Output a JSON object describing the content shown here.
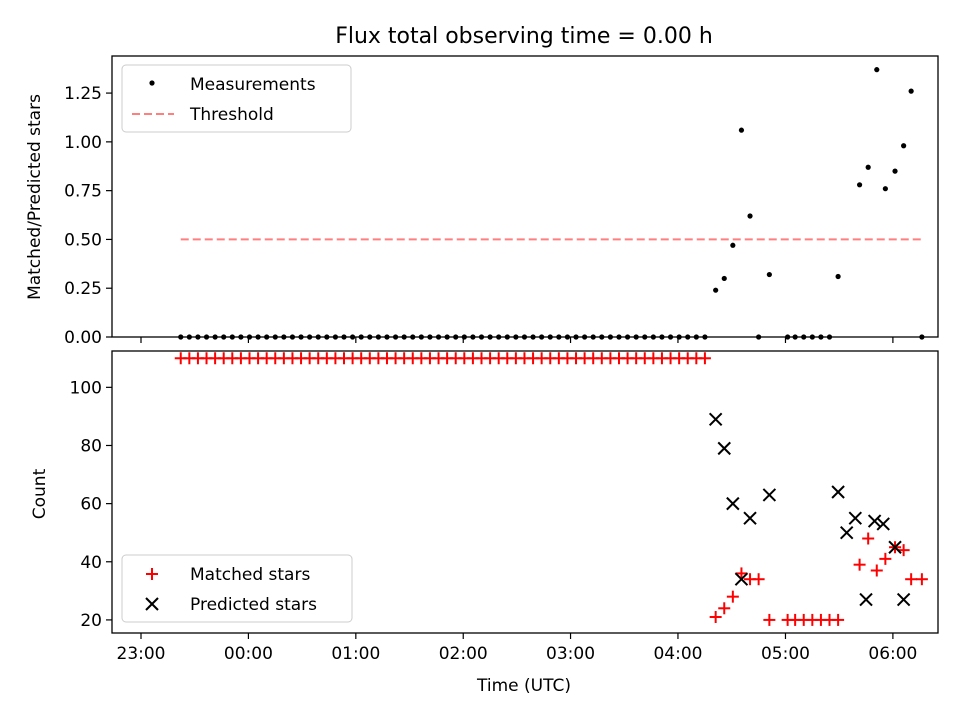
{
  "chart_data": {
    "title": "Flux total observing time = 0.00 h",
    "xlabel": "Time (UTC)",
    "x_unit": "hours since 23:00 UTC",
    "xlim": [
      -0.27,
      7.42
    ],
    "xticks": [
      {
        "value": 0,
        "label": "23:00"
      },
      {
        "value": 1,
        "label": "00:00"
      },
      {
        "value": 2,
        "label": "01:00"
      },
      {
        "value": 3,
        "label": "02:00"
      },
      {
        "value": 3.999,
        "label": "03:00"
      },
      {
        "value": 4.999,
        "label": "04:00"
      },
      {
        "value": 6,
        "label": "05:00"
      },
      {
        "value": 7,
        "label": "06:00"
      }
    ],
    "panels": [
      {
        "type": "scatter",
        "ylabel": "Matched/Predicted stars",
        "ylim": [
          0,
          1.44
        ],
        "yticks": [
          {
            "value": 0,
            "label": "0.00"
          },
          {
            "value": 0.25,
            "label": "0.25"
          },
          {
            "value": 0.5,
            "label": "0.50"
          },
          {
            "value": 0.75,
            "label": "0.75"
          },
          {
            "value": 1.0,
            "label": "1.00"
          },
          {
            "value": 1.25,
            "label": "1.25"
          }
        ],
        "legend": {
          "position": "top-left",
          "entries": [
            "Measurements",
            "Threshold"
          ]
        },
        "series": [
          {
            "name": "Measurements",
            "kind": "dots",
            "color": "#000000",
            "x": [
              0.37,
              0.45,
              0.53,
              0.61,
              0.69,
              0.77,
              0.85,
              0.93,
              1.01,
              1.09,
              1.17,
              1.25,
              1.33,
              1.41,
              1.49,
              1.57,
              1.65,
              1.73,
              1.81,
              1.89,
              1.97,
              2.05,
              2.13,
              2.21,
              2.29,
              2.37,
              2.45,
              2.53,
              2.61,
              2.69,
              2.77,
              2.85,
              2.93,
              3.01,
              3.09,
              3.17,
              3.25,
              3.33,
              3.41,
              3.49,
              3.57,
              3.65,
              3.73,
              3.81,
              3.89,
              3.97,
              4.05,
              4.13,
              4.21,
              4.29,
              4.37,
              4.45,
              4.53,
              4.61,
              4.69,
              4.77,
              4.85,
              4.93,
              5.01,
              5.09,
              5.17,
              5.25,
              5.35,
              5.43,
              5.51,
              5.59,
              5.67,
              5.75,
              5.85,
              6.02,
              6.09,
              6.17,
              6.25,
              6.33,
              6.41,
              6.49,
              6.69,
              6.77,
              6.85,
              6.93,
              7.02,
              7.1,
              7.17,
              7.27
            ],
            "y": [
              0,
              0,
              0,
              0,
              0,
              0,
              0,
              0,
              0,
              0,
              0,
              0,
              0,
              0,
              0,
              0,
              0,
              0,
              0,
              0,
              0,
              0,
              0,
              0,
              0,
              0,
              0,
              0,
              0,
              0,
              0,
              0,
              0,
              0,
              0,
              0,
              0,
              0,
              0,
              0,
              0,
              0,
              0,
              0,
              0,
              0,
              0,
              0,
              0,
              0,
              0,
              0,
              0,
              0,
              0,
              0,
              0,
              0,
              0,
              0,
              0,
              0,
              0.24,
              0.3,
              0.47,
              1.06,
              0.62,
              0,
              0.32,
              0,
              0,
              0,
              0,
              0,
              0,
              0.31,
              0.78,
              0.87,
              1.37,
              0.76,
              0.85,
              0.98,
              1.26,
              0
            ]
          },
          {
            "name": "Threshold",
            "kind": "dashed-line",
            "color": "#ff7f7f",
            "x": [
              0.37,
              7.27
            ],
            "y": [
              0.5,
              0.5
            ]
          }
        ]
      },
      {
        "type": "scatter",
        "ylabel": "Count",
        "ylim": [
          15.5,
          112.5
        ],
        "yticks": [
          {
            "value": 20,
            "label": "20"
          },
          {
            "value": 40,
            "label": "40"
          },
          {
            "value": 60,
            "label": "60"
          },
          {
            "value": 80,
            "label": "80"
          },
          {
            "value": 100,
            "label": "100"
          }
        ],
        "legend": {
          "position": "bottom-left",
          "entries": [
            "Matched stars",
            "Predicted stars"
          ]
        },
        "series": [
          {
            "name": "Matched stars",
            "kind": "plus",
            "color": "#ff0000",
            "x": [
              0.37,
              0.45,
              0.53,
              0.61,
              0.69,
              0.77,
              0.85,
              0.93,
              1.01,
              1.09,
              1.17,
              1.25,
              1.33,
              1.41,
              1.49,
              1.57,
              1.65,
              1.73,
              1.81,
              1.89,
              1.97,
              2.05,
              2.13,
              2.21,
              2.29,
              2.37,
              2.45,
              2.53,
              2.61,
              2.69,
              2.77,
              2.85,
              2.93,
              3.01,
              3.09,
              3.17,
              3.25,
              3.33,
              3.41,
              3.49,
              3.57,
              3.65,
              3.73,
              3.81,
              3.89,
              3.97,
              4.05,
              4.13,
              4.21,
              4.29,
              4.37,
              4.45,
              4.53,
              4.61,
              4.69,
              4.77,
              4.85,
              4.93,
              5.01,
              5.09,
              5.17,
              5.25,
              5.35,
              5.43,
              5.51,
              5.59,
              5.67,
              5.75,
              5.85,
              6.02,
              6.09,
              6.17,
              6.25,
              6.33,
              6.41,
              6.49,
              6.69,
              6.77,
              6.85,
              6.93,
              7.02,
              7.1,
              7.17,
              7.27
            ],
            "y": [
              110,
              110,
              110,
              110,
              110,
              110,
              110,
              110,
              110,
              110,
              110,
              110,
              110,
              110,
              110,
              110,
              110,
              110,
              110,
              110,
              110,
              110,
              110,
              110,
              110,
              110,
              110,
              110,
              110,
              110,
              110,
              110,
              110,
              110,
              110,
              110,
              110,
              110,
              110,
              110,
              110,
              110,
              110,
              110,
              110,
              110,
              110,
              110,
              110,
              110,
              110,
              110,
              110,
              110,
              110,
              110,
              110,
              110,
              110,
              110,
              110,
              110,
              21,
              24,
              28,
              36,
              34,
              34,
              20,
              20,
              20,
              20,
              20,
              20,
              20,
              20,
              39,
              48,
              37,
              41,
              45,
              44,
              34,
              34
            ]
          },
          {
            "name": "Predicted stars",
            "kind": "x",
            "color": "#000000",
            "x": [
              5.35,
              5.43,
              5.51,
              5.59,
              5.67,
              5.85,
              6.49,
              6.57,
              6.65,
              6.75,
              6.83,
              6.91,
              7.02,
              7.1
            ],
            "y": [
              89,
              79,
              60,
              34,
              55,
              63,
              64,
              50,
              55,
              27,
              54,
              53,
              45,
              27
            ]
          }
        ]
      }
    ]
  }
}
